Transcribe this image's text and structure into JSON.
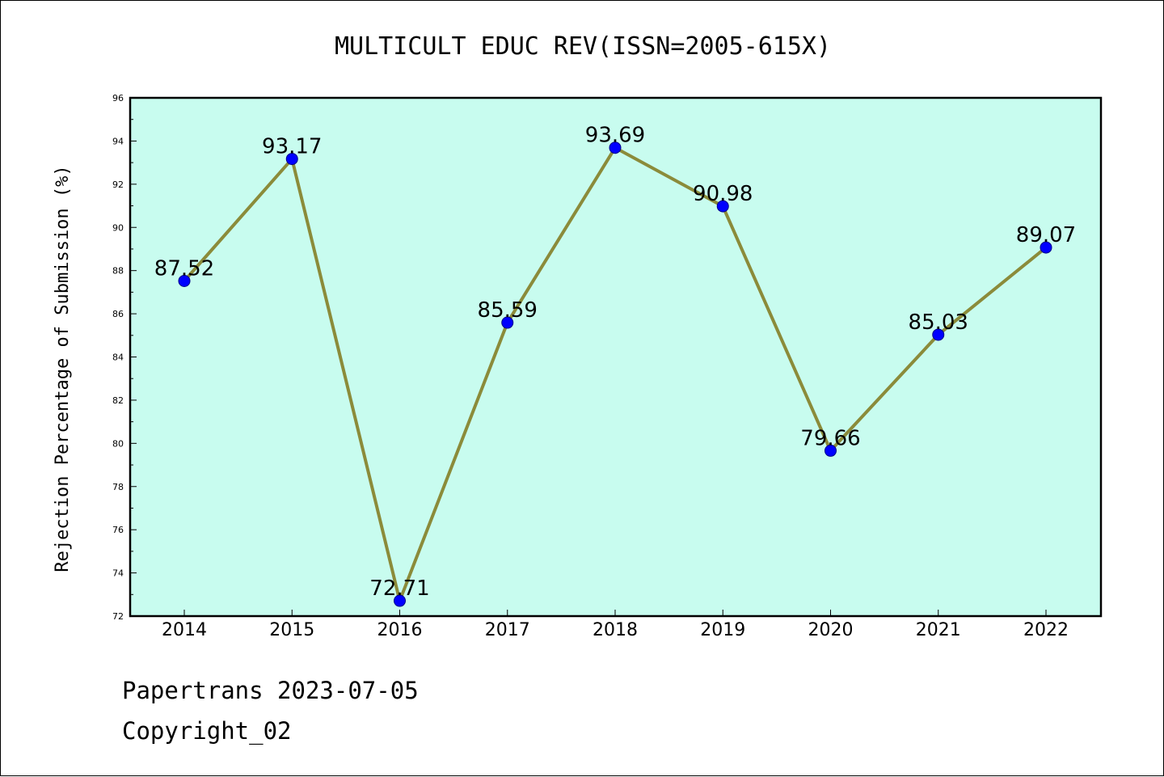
{
  "chart_data": {
    "type": "line",
    "title": "MULTICULT EDUC REV(ISSN=2005-615X)",
    "xlabel": "",
    "ylabel": "Rejection Percentage of Submission (%)",
    "categories": [
      "2014",
      "2015",
      "2016",
      "2017",
      "2018",
      "2019",
      "2020",
      "2021",
      "2022"
    ],
    "values": [
      87.52,
      93.17,
      72.71,
      85.59,
      93.69,
      90.98,
      79.66,
      85.03,
      89.07
    ],
    "data_labels": [
      "87.52",
      "93.17",
      "72.71",
      "85.59",
      "93.69",
      "90.98",
      "79.66",
      "85.03",
      "89.07"
    ],
    "ylim": [
      72,
      96
    ],
    "yticks": [
      72,
      74,
      76,
      78,
      80,
      82,
      84,
      86,
      88,
      90,
      92,
      94,
      96
    ],
    "grid": false,
    "legend": "none",
    "colors": {
      "plot_background": "#c8fcef",
      "line": "#8b8b3a",
      "marker": "#0000ff"
    }
  },
  "footer": {
    "line1": "Papertrans 2023-07-05",
    "line2": "Copyright_02"
  }
}
